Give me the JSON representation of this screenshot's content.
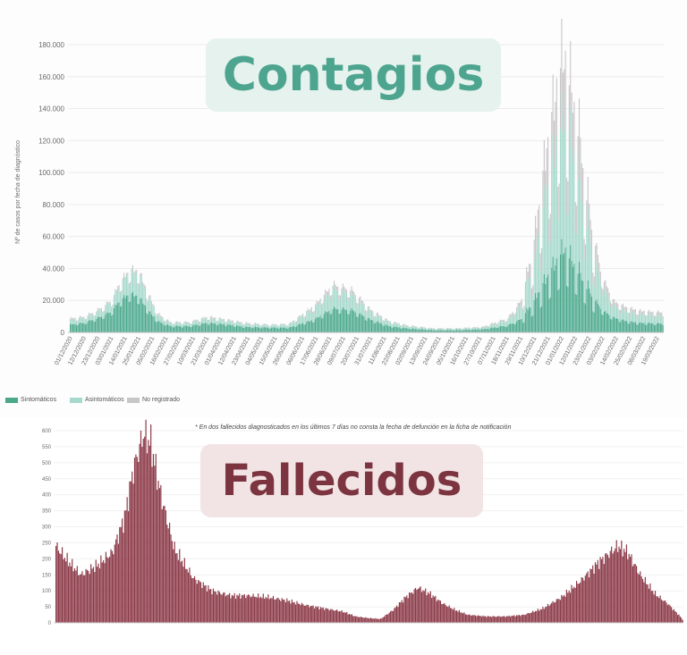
{
  "banners": {
    "top": "Contagios",
    "bottom": "Fallecidos"
  },
  "note": "* En dos fallecidos diagnosticados en los últimos 7 días no consta la fecha de defunción en la ficha de notificación",
  "colors": {
    "sintomaticos": "#4aa88b",
    "asintomaticos": "#a5d9cb",
    "no_registrado": "#c9c6c8",
    "fallecidos": "#8c3a48"
  },
  "chart_data": [
    {
      "type": "bar",
      "stacked": true,
      "ylabel": "Nº de casos por fecha de diagnóstico",
      "ylim": [
        0,
        180000
      ],
      "y_ticks": [
        "0",
        "20.000",
        "40.000",
        "60.000",
        "80.000",
        "100.000",
        "120.000",
        "140.000",
        "160.000",
        "180.000"
      ],
      "x_tick_labels": [
        "01/12/2020",
        "12/12/2020",
        "23/12/2020",
        "03/01/2021",
        "14/01/2021",
        "25/01/2021",
        "05/02/2021",
        "16/02/2021",
        "27/02/2021",
        "10/03/2021",
        "21/03/2021",
        "01/04/2021",
        "12/04/2021",
        "23/04/2021",
        "04/05/2021",
        "15/05/2021",
        "26/05/2021",
        "06/06/2021",
        "17/06/2021",
        "28/06/2021",
        "09/07/2021",
        "20/07/2021",
        "31/07/2021",
        "11/08/2021",
        "22/08/2021",
        "02/09/2021",
        "13/09/2021",
        "24/09/2021",
        "05/10/2021",
        "16/10/2021",
        "27/10/2021",
        "07/11/2021",
        "18/11/2021",
        "29/11/2021",
        "10/12/2021",
        "21/12/2021",
        "01/01/2022",
        "12/01/2022",
        "23/01/2022",
        "03/02/2022",
        "14/02/2022",
        "25/02/2022",
        "08/03/2022",
        "19/03/2022"
      ],
      "legend": [
        "Sintomáticos",
        "Asintomáticos",
        "No registrado"
      ],
      "legend_position": "bottom-left",
      "series": [
        {
          "name": "Sintomáticos",
          "points": [
            [
              0,
              5000
            ],
            [
              11,
              6000
            ],
            [
              22,
              9000
            ],
            [
              33,
              13000
            ],
            [
              40,
              20000
            ],
            [
              48,
              24000
            ],
            [
              55,
              22000
            ],
            [
              62,
              14000
            ],
            [
              70,
              7000
            ],
            [
              80,
              4000
            ],
            [
              95,
              4000
            ],
            [
              110,
              6000
            ],
            [
              125,
              5000
            ],
            [
              140,
              3500
            ],
            [
              160,
              3000
            ],
            [
              175,
              3000
            ],
            [
              195,
              8000
            ],
            [
              210,
              15000
            ],
            [
              225,
              14000
            ],
            [
              240,
              8000
            ],
            [
              255,
              4000
            ],
            [
              270,
              2500
            ],
            [
              290,
              1500
            ],
            [
              310,
              1500
            ],
            [
              330,
              2000
            ],
            [
              350,
              4500
            ],
            [
              360,
              8000
            ],
            [
              370,
              18000
            ],
            [
              380,
              32000
            ],
            [
              390,
              45000
            ],
            [
              395,
              52000
            ],
            [
              405,
              40000
            ],
            [
              415,
              26000
            ],
            [
              425,
              14000
            ],
            [
              435,
              9000
            ],
            [
              445,
              7000
            ],
            [
              455,
              6000
            ],
            [
              475,
              5500
            ]
          ]
        },
        {
          "name": "Asintomáticos",
          "points": [
            [
              0,
              3000
            ],
            [
              11,
              3000
            ],
            [
              22,
              4000
            ],
            [
              33,
              6000
            ],
            [
              40,
              10000
            ],
            [
              48,
              13000
            ],
            [
              55,
              14000
            ],
            [
              62,
              9000
            ],
            [
              70,
              4000
            ],
            [
              80,
              2000
            ],
            [
              95,
              2000
            ],
            [
              110,
              3000
            ],
            [
              125,
              2500
            ],
            [
              140,
              2000
            ],
            [
              160,
              1500
            ],
            [
              175,
              2000
            ],
            [
              195,
              7000
            ],
            [
              210,
              12000
            ],
            [
              225,
              10000
            ],
            [
              240,
              5000
            ],
            [
              255,
              2500
            ],
            [
              270,
              1500
            ],
            [
              290,
              800
            ],
            [
              310,
              800
            ],
            [
              330,
              1200
            ],
            [
              350,
              3500
            ],
            [
              360,
              8000
            ],
            [
              370,
              22000
            ],
            [
              380,
              50000
            ],
            [
              390,
              75000
            ],
            [
              395,
              80000
            ],
            [
              405,
              65000
            ],
            [
              415,
              35000
            ],
            [
              425,
              15000
            ],
            [
              435,
              7000
            ],
            [
              445,
              6000
            ],
            [
              455,
              5500
            ],
            [
              475,
              5000
            ]
          ]
        },
        {
          "name": "No registrado",
          "points": [
            [
              0,
              800
            ],
            [
              11,
              800
            ],
            [
              22,
              1000
            ],
            [
              33,
              1000
            ],
            [
              40,
              1500
            ],
            [
              48,
              2000
            ],
            [
              55,
              2000
            ],
            [
              62,
              1500
            ],
            [
              70,
              800
            ],
            [
              80,
              500
            ],
            [
              95,
              500
            ],
            [
              110,
              800
            ],
            [
              125,
              600
            ],
            [
              140,
              500
            ],
            [
              160,
              400
            ],
            [
              175,
              400
            ],
            [
              195,
              1500
            ],
            [
              210,
              3000
            ],
            [
              225,
              2500
            ],
            [
              240,
              1200
            ],
            [
              255,
              600
            ],
            [
              270,
              400
            ],
            [
              290,
              300
            ],
            [
              310,
              300
            ],
            [
              330,
              400
            ],
            [
              350,
              1000
            ],
            [
              360,
              3000
            ],
            [
              370,
              10000
            ],
            [
              380,
              25000
            ],
            [
              390,
              35000
            ],
            [
              395,
              40000
            ],
            [
              405,
              30000
            ],
            [
              415,
              15000
            ],
            [
              425,
              6000
            ],
            [
              435,
              3000
            ],
            [
              445,
              2500
            ],
            [
              455,
              2000
            ],
            [
              475,
              2000
            ]
          ]
        }
      ]
    },
    {
      "type": "bar",
      "ylim": [
        0,
        600
      ],
      "y_ticks": [
        "0",
        "50",
        "100",
        "150",
        "200",
        "250",
        "300",
        "350",
        "400",
        "450",
        "500",
        "550",
        "600"
      ],
      "series": [
        {
          "name": "Fallecidos",
          "points": [
            [
              0,
              240
            ],
            [
              8,
              200
            ],
            [
              20,
              150
            ],
            [
              33,
              180
            ],
            [
              45,
              220
            ],
            [
              55,
              330
            ],
            [
              62,
              480
            ],
            [
              70,
              590
            ],
            [
              76,
              560
            ],
            [
              84,
              400
            ],
            [
              95,
              230
            ],
            [
              110,
              140
            ],
            [
              125,
              100
            ],
            [
              140,
              85
            ],
            [
              155,
              85
            ],
            [
              170,
              80
            ],
            [
              185,
              70
            ],
            [
              200,
              55
            ],
            [
              215,
              45
            ],
            [
              230,
              35
            ],
            [
              240,
              20
            ],
            [
              250,
              15
            ],
            [
              260,
              12
            ],
            [
              270,
              40
            ],
            [
              280,
              80
            ],
            [
              290,
              110
            ],
            [
              300,
              90
            ],
            [
              310,
              60
            ],
            [
              320,
              40
            ],
            [
              330,
              25
            ],
            [
              345,
              20
            ],
            [
              360,
              20
            ],
            [
              375,
              25
            ],
            [
              390,
              45
            ],
            [
              405,
              80
            ],
            [
              420,
              130
            ],
            [
              435,
              190
            ],
            [
              450,
              240
            ],
            [
              458,
              220
            ],
            [
              468,
              150
            ],
            [
              480,
              90
            ],
            [
              490,
              60
            ],
            [
              500,
              20
            ],
            [
              503,
              5
            ]
          ]
        }
      ]
    }
  ]
}
